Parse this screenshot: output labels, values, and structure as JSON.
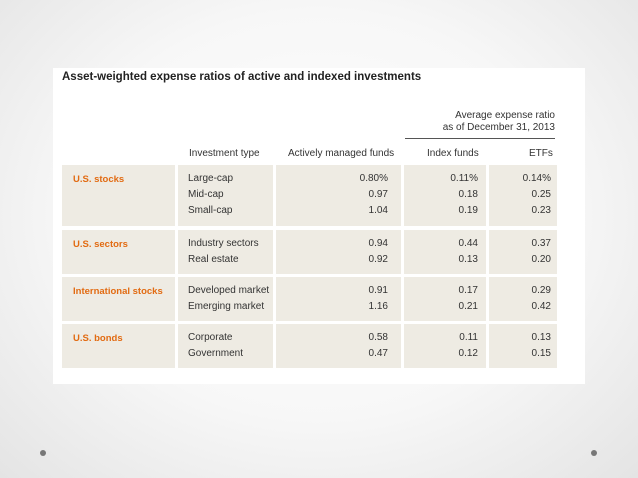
{
  "title": "Asset-weighted expense ratios of active and indexed investments",
  "avg_header": {
    "line1": "Average expense ratio",
    "line2": "as of December 31, 2013"
  },
  "columns": {
    "investment_type": "Investment type",
    "active": "Actively managed funds",
    "index": "Index funds",
    "etfs": "ETFs"
  },
  "groups": [
    {
      "name": "U.S. stocks",
      "types": [
        "Large-cap",
        "Mid-cap",
        "Small-cap"
      ],
      "active": [
        "0.80%",
        "0.97",
        "1.04"
      ],
      "index": [
        "0.11%",
        "0.18",
        "0.19"
      ],
      "etfs": [
        "0.14%",
        "0.25",
        "0.23"
      ]
    },
    {
      "name": "U.S. sectors",
      "types": [
        "Industry sectors",
        "Real estate"
      ],
      "active": [
        "0.94",
        "0.92"
      ],
      "index": [
        "0.44",
        "0.13"
      ],
      "etfs": [
        "0.37",
        "0.20"
      ]
    },
    {
      "name": "International stocks",
      "types": [
        "Developed market",
        "Emerging market"
      ],
      "active": [
        "0.91",
        "1.16"
      ],
      "index": [
        "0.17",
        "0.21"
      ],
      "etfs": [
        "0.29",
        "0.42"
      ]
    },
    {
      "name": "U.S. bonds",
      "types": [
        "Corporate",
        "Government"
      ],
      "active": [
        "0.58",
        "0.47"
      ],
      "index": [
        "0.11",
        "0.12"
      ],
      "etfs": [
        "0.13",
        "0.15"
      ]
    }
  ]
}
